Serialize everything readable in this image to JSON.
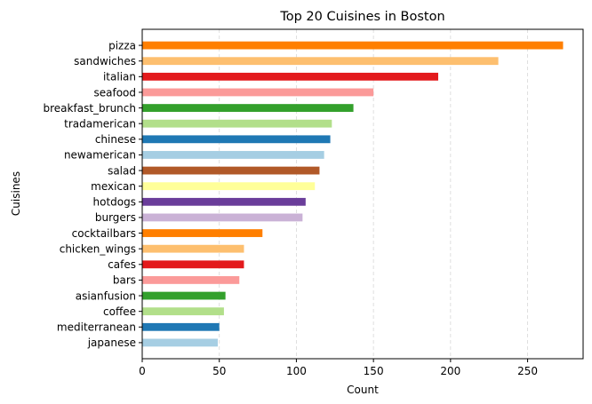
{
  "chart_data": {
    "type": "bar",
    "orientation": "horizontal",
    "title": "Top 20 Cuisines in Boston",
    "xlabel": "Count",
    "ylabel": "Cuisines",
    "xlim": [
      0,
      286
    ],
    "xticks": [
      0,
      50,
      100,
      150,
      200,
      250
    ],
    "grid": "x-dashed",
    "categories": [
      "pizza",
      "sandwiches",
      "italian",
      "seafood",
      "breakfast_brunch",
      "tradamerican",
      "chinese",
      "newamerican",
      "salad",
      "mexican",
      "hotdogs",
      "burgers",
      "cocktailbars",
      "chicken_wings",
      "cafes",
      "bars",
      "asianfusion",
      "coffee",
      "mediterranean",
      "japanese"
    ],
    "values": [
      273,
      231,
      192,
      150,
      137,
      123,
      122,
      118,
      115,
      112,
      106,
      104,
      78,
      66,
      66,
      63,
      54,
      53,
      50,
      49
    ],
    "colors": [
      "#ff7f00",
      "#fdbf6f",
      "#e31a1c",
      "#fb9a99",
      "#33a02c",
      "#b2df8a",
      "#1f78b4",
      "#a6cee3",
      "#b15928",
      "#ffff99",
      "#6a3d9a",
      "#cab2d6",
      "#ff7f00",
      "#fdbf6f",
      "#e31a1c",
      "#fb9a99",
      "#33a02c",
      "#b2df8a",
      "#1f78b4",
      "#a6cee3"
    ]
  }
}
